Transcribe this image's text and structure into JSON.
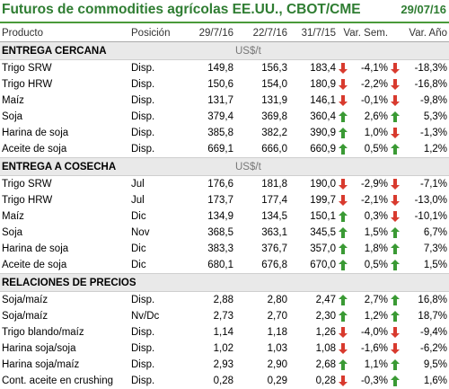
{
  "header": {
    "title": "Futuros de commodities agrícolas EE.UU., CBOT/CME",
    "date": "29/07/16"
  },
  "columns": [
    "Producto",
    "Posición",
    "29/7/16",
    "22/7/16",
    "31/7/15",
    "Var. Sem.",
    "Var. Año"
  ],
  "colors": {
    "up": "#3a9a34",
    "down": "#d83a2e",
    "title": "#2f7d32"
  },
  "sections": [
    {
      "label": "ENTREGA CERCANA",
      "unit": "US$/t",
      "rows": [
        {
          "product": "Trigo SRW",
          "position": "Disp.",
          "v1": "149,8",
          "v2": "156,3",
          "v3": "183,4",
          "a1": "down",
          "var_sem": "-4,1%",
          "a2": "down",
          "var_ano": "-18,3%"
        },
        {
          "product": "Trigo HRW",
          "position": "Disp.",
          "v1": "150,6",
          "v2": "154,0",
          "v3": "180,9",
          "a1": "down",
          "var_sem": "-2,2%",
          "a2": "down",
          "var_ano": "-16,8%"
        },
        {
          "product": "Maíz",
          "position": "Disp.",
          "v1": "131,7",
          "v2": "131,9",
          "v3": "146,1",
          "a1": "down",
          "var_sem": "-0,1%",
          "a2": "down",
          "var_ano": "-9,8%"
        },
        {
          "product": "Soja",
          "position": "Disp.",
          "v1": "379,4",
          "v2": "369,8",
          "v3": "360,4",
          "a1": "up",
          "var_sem": "2,6%",
          "a2": "up",
          "var_ano": "5,3%"
        },
        {
          "product": "Harina de soja",
          "position": "Disp.",
          "v1": "385,8",
          "v2": "382,2",
          "v3": "390,9",
          "a1": "up",
          "var_sem": "1,0%",
          "a2": "down",
          "var_ano": "-1,3%"
        },
        {
          "product": "Aceite de soja",
          "position": "Disp.",
          "v1": "669,1",
          "v2": "666,0",
          "v3": "660,9",
          "a1": "up",
          "var_sem": "0,5%",
          "a2": "up",
          "var_ano": "1,2%"
        }
      ]
    },
    {
      "label": "ENTREGA A COSECHA",
      "unit": "US$/t",
      "rows": [
        {
          "product": "Trigo SRW",
          "position": "Jul",
          "v1": "176,6",
          "v2": "181,8",
          "v3": "190,0",
          "a1": "down",
          "var_sem": "-2,9%",
          "a2": "down",
          "var_ano": "-7,1%"
        },
        {
          "product": "Trigo HRW",
          "position": "Jul",
          "v1": "173,7",
          "v2": "177,4",
          "v3": "199,7",
          "a1": "down",
          "var_sem": "-2,1%",
          "a2": "down",
          "var_ano": "-13,0%"
        },
        {
          "product": "Maíz",
          "position": "Dic",
          "v1": "134,9",
          "v2": "134,5",
          "v3": "150,1",
          "a1": "up",
          "var_sem": "0,3%",
          "a2": "down",
          "var_ano": "-10,1%"
        },
        {
          "product": "Soja",
          "position": "Nov",
          "v1": "368,5",
          "v2": "363,1",
          "v3": "345,5",
          "a1": "up",
          "var_sem": "1,5%",
          "a2": "up",
          "var_ano": "6,7%"
        },
        {
          "product": "Harina de soja",
          "position": "Dic",
          "v1": "383,3",
          "v2": "376,7",
          "v3": "357,0",
          "a1": "up",
          "var_sem": "1,8%",
          "a2": "up",
          "var_ano": "7,3%"
        },
        {
          "product": "Aceite de soja",
          "position": "Dic",
          "v1": "680,1",
          "v2": "676,8",
          "v3": "670,0",
          "a1": "up",
          "var_sem": "0,5%",
          "a2": "up",
          "var_ano": "1,5%"
        }
      ]
    },
    {
      "label": "RELACIONES DE PRECIOS",
      "unit": "",
      "rows": [
        {
          "product": "Soja/maíz",
          "position": "Disp.",
          "v1": "2,88",
          "v2": "2,80",
          "v3": "2,47",
          "a1": "up",
          "var_sem": "2,7%",
          "a2": "up",
          "var_ano": "16,8%"
        },
        {
          "product": "Soja/maíz",
          "position": "Nv/Dc",
          "v1": "2,73",
          "v2": "2,70",
          "v3": "2,30",
          "a1": "up",
          "var_sem": "1,2%",
          "a2": "up",
          "var_ano": "18,7%"
        },
        {
          "product": "Trigo blando/maíz",
          "position": "Disp.",
          "v1": "1,14",
          "v2": "1,18",
          "v3": "1,26",
          "a1": "down",
          "var_sem": "-4,0%",
          "a2": "down",
          "var_ano": "-9,4%"
        },
        {
          "product": "Harina soja/soja",
          "position": "Disp.",
          "v1": "1,02",
          "v2": "1,03",
          "v3": "1,08",
          "a1": "down",
          "var_sem": "-1,6%",
          "a2": "down",
          "var_ano": "-6,2%"
        },
        {
          "product": "Harina soja/maíz",
          "position": "Disp.",
          "v1": "2,93",
          "v2": "2,90",
          "v3": "2,68",
          "a1": "up",
          "var_sem": "1,1%",
          "a2": "up",
          "var_ano": "9,5%"
        },
        {
          "product": "Cont. aceite en crushing",
          "position": "Disp.",
          "v1": "0,28",
          "v2": "0,29",
          "v3": "0,28",
          "a1": "down",
          "var_sem": "-0,3%",
          "a2": "up",
          "var_ano": "1,6%"
        }
      ]
    }
  ]
}
